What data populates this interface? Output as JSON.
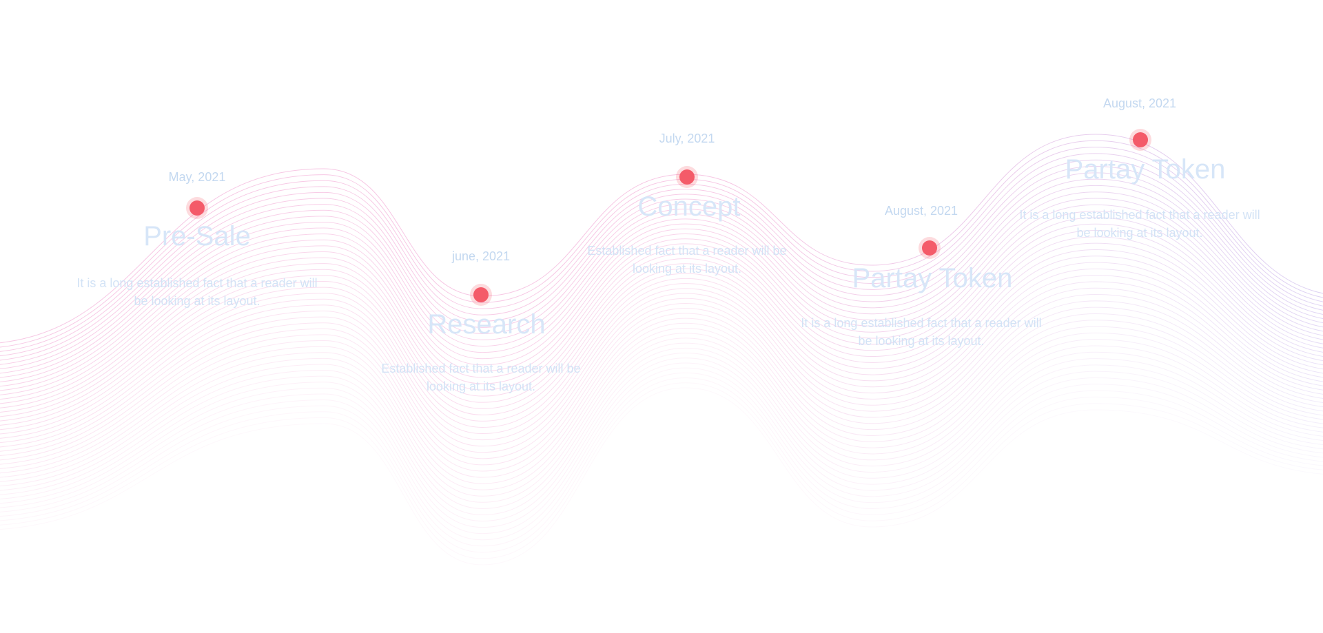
{
  "colors": {
    "dot": "#f45b69",
    "text": "#c3d8f0",
    "wave_left": "#f2a6d4",
    "wave_right": "#c8b8ee"
  },
  "milestones": [
    {
      "date": "May, 2021",
      "title": "Pre-Sale",
      "description": "It is a long established fact that a reader will be looking at its layout."
    },
    {
      "date": "june, 2021",
      "title": "Research",
      "description": "Established fact that a reader will be looking at its layout."
    },
    {
      "date": "July, 2021",
      "title": "Concept",
      "description": "Established fact that a reader will be looking at its layout."
    },
    {
      "date": "August, 2021",
      "title": "Partay Token",
      "description": "It is a long established fact that a reader will be looking at its layout."
    },
    {
      "date": "August, 2021",
      "title": "Partay Token",
      "description": "It is a long established fact that a reader will be looking at its layout."
    }
  ]
}
